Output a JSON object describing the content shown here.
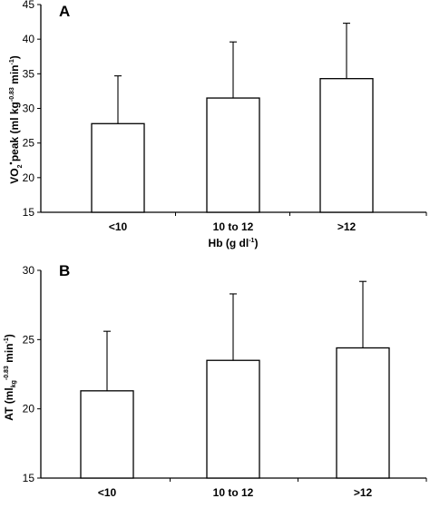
{
  "chart_data": [
    {
      "type": "bar",
      "panel_label": "A",
      "categories": [
        "<10",
        "10 to 12",
        ">12"
      ],
      "values": [
        27.8,
        31.5,
        34.3
      ],
      "errors_upper": [
        34.7,
        39.6,
        42.3
      ],
      "ylim": [
        15,
        45
      ],
      "yticks": [
        "15",
        "20",
        "25",
        "30",
        "35",
        "40",
        "45"
      ],
      "ylabel": {
        "v": "V",
        "o": "O",
        "o_sub": "2",
        "mid": " peak (ml kg",
        "sup1": "-0.83",
        "end": " min",
        "sup2": "-1",
        "close": ")"
      },
      "xlabel": {
        "main": "Hb (g dl",
        "sup": "-1",
        "close": ")"
      },
      "bar_fill": "#ffffff",
      "bar_stroke": "#000000",
      "error_bars": "upper only",
      "grid": false
    },
    {
      "type": "bar",
      "panel_label": "B",
      "categories": [
        "<10",
        "10 to 12",
        ">12"
      ],
      "values": [
        21.3,
        23.5,
        24.4
      ],
      "errors_upper": [
        25.6,
        28.3,
        29.2
      ],
      "ylim": [
        15,
        30
      ],
      "yticks": [
        "15",
        "20",
        "25",
        "30"
      ],
      "ylabel": {
        "main": "AT (ml",
        "sub": "kg",
        "sup1": "-0.83",
        "end": " min",
        "sup2": "-1",
        "close": ")"
      },
      "bar_fill": "#ffffff",
      "bar_stroke": "#000000",
      "error_bars": "upper only",
      "grid": false
    }
  ]
}
